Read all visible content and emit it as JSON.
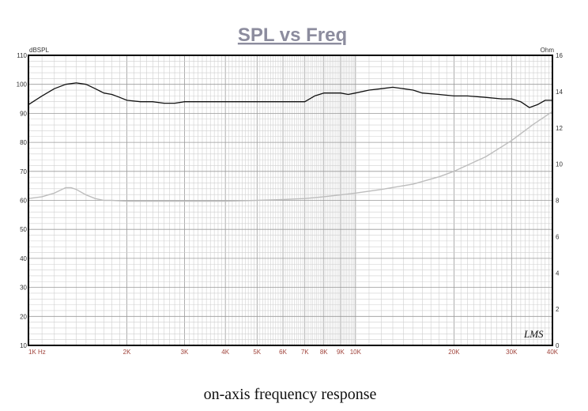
{
  "chart_data": {
    "type": "line",
    "title": "SPL vs Freq",
    "caption": "on-axis frequency response",
    "left_axis_unit": "dBSPL",
    "right_axis_unit": "Ohm",
    "logo_text": "LMS",
    "x_scale": "log",
    "x_unit": "Hz",
    "xlim": [
      1000,
      40000
    ],
    "ylim_left": [
      10,
      110
    ],
    "ylim_right": [
      0,
      16
    ],
    "grid": true,
    "x_tick_labels": [
      {
        "value": 1000,
        "label": "1K  Hz"
      },
      {
        "value": 2000,
        "label": "2K"
      },
      {
        "value": 3000,
        "label": "3K"
      },
      {
        "value": 4000,
        "label": "4K"
      },
      {
        "value": 5000,
        "label": "5K"
      },
      {
        "value": 6000,
        "label": "6K"
      },
      {
        "value": 7000,
        "label": "7K"
      },
      {
        "value": 8000,
        "label": "8K"
      },
      {
        "value": 9000,
        "label": "9K"
      },
      {
        "value": 10000,
        "label": "10K"
      },
      {
        "value": 20000,
        "label": "20K"
      },
      {
        "value": 30000,
        "label": "30K"
      },
      {
        "value": 40000,
        "label": "40K"
      }
    ],
    "y_left_ticks": [
      10,
      20,
      30,
      40,
      50,
      60,
      70,
      80,
      90,
      100,
      110
    ],
    "y_right_ticks": [
      0,
      2,
      4,
      6,
      8,
      10,
      12,
      14,
      16
    ],
    "series": [
      {
        "axis": "left",
        "color": "#111111",
        "x": [
          1000,
          1100,
          1200,
          1300,
          1400,
          1500,
          1600,
          1700,
          1800,
          1900,
          2000,
          2200,
          2400,
          2600,
          2800,
          3000,
          3300,
          3600,
          4000,
          4400,
          4800,
          5000,
          5500,
          6000,
          6500,
          7000,
          7500,
          8000,
          8500,
          9000,
          9500,
          10000,
          11000,
          12000,
          13000,
          14000,
          15000,
          16000,
          18000,
          20000,
          22000,
          25000,
          28000,
          30000,
          32000,
          34000,
          36000,
          38000,
          40000
        ],
        "values": [
          93,
          96,
          98.5,
          100,
          100.5,
          100,
          98.5,
          97,
          96.5,
          95.5,
          94.5,
          94,
          94,
          93.5,
          93.5,
          94,
          94,
          94,
          94,
          94,
          94,
          94,
          94,
          94,
          94,
          94,
          96,
          97,
          97,
          97,
          96.5,
          97,
          98,
          98.5,
          99,
          98.5,
          98,
          97,
          96.5,
          96,
          96,
          95.5,
          95,
          95,
          94,
          92,
          93,
          94.5,
          94.5
        ]
      },
      {
        "axis": "right",
        "color": "#bdbdbd",
        "x": [
          1000,
          1100,
          1200,
          1300,
          1350,
          1400,
          1500,
          1600,
          1700,
          1800,
          2000,
          2500,
          3000,
          4000,
          5000,
          6000,
          7000,
          8000,
          9000,
          10000,
          12000,
          15000,
          18000,
          20000,
          25000,
          30000,
          35000,
          40000
        ],
        "values": [
          8.1,
          8.2,
          8.4,
          8.7,
          8.7,
          8.6,
          8.3,
          8.1,
          8.0,
          8.0,
          7.95,
          7.95,
          7.95,
          7.95,
          8.0,
          8.05,
          8.1,
          8.2,
          8.3,
          8.4,
          8.6,
          8.9,
          9.3,
          9.6,
          10.4,
          11.3,
          12.2,
          12.9
        ]
      }
    ]
  }
}
